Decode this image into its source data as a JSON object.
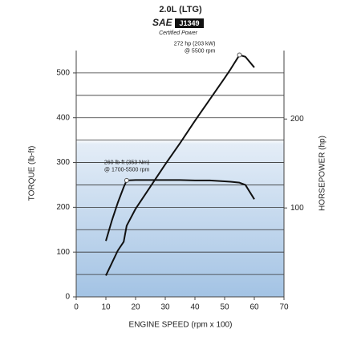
{
  "chart_data": {
    "type": "line",
    "title": "2.0L (LTG)",
    "logo": {
      "brand": "SAE",
      "standard": "J1349",
      "caption": "Certified Power"
    },
    "xlabel": "ENGINE SPEED (rpm x 100)",
    "ylabel": "TORQUE (lb-ft)",
    "y2label": "HORSEPOWER (hp)",
    "x": [
      10,
      12,
      14,
      16,
      17,
      20,
      25,
      30,
      35,
      40,
      45,
      50,
      52,
      55,
      57,
      60
    ],
    "series": [
      {
        "color": "#111111",
        "axis": "y",
        "values": [
          125,
          170,
          210,
          245,
          260,
          261,
          261,
          261,
          261,
          260,
          260,
          258,
          257,
          255,
          250,
          218
        ]
      },
      {
        "color": "#111111",
        "axis": "y2",
        "values": [
          24,
          38,
          52,
          62,
          80,
          99,
          124,
          149,
          173,
          198,
          222,
          246,
          256,
          272,
          270,
          258
        ]
      }
    ],
    "annotations": [
      {
        "lines": [
          "260 lb-ft (353 Nm)",
          "@ 1700-5500 rpm"
        ],
        "x": 17,
        "y": 260,
        "axis": "y"
      },
      {
        "lines": [
          "272 hp (203 kW)",
          "@ 5500 rpm"
        ],
        "x": 55,
        "y": 272,
        "axis": "y2"
      }
    ],
    "xlim": [
      0,
      70
    ],
    "xticks": [
      0,
      10,
      20,
      30,
      40,
      50,
      60,
      70
    ],
    "ylim": [
      0,
      550
    ],
    "yticks": [
      0,
      100,
      200,
      300,
      400,
      500
    ],
    "yminorticks": [
      50,
      150,
      250,
      350,
      450
    ],
    "y2lim": [
      0,
      277
    ],
    "y2ticks": [
      100,
      200
    ],
    "grid": true
  }
}
